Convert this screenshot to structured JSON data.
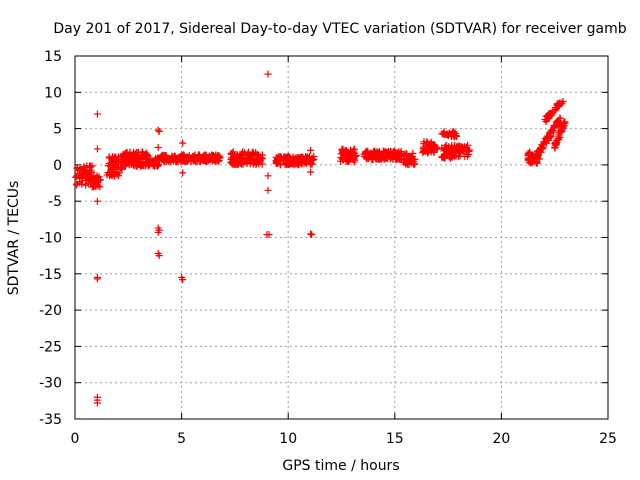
{
  "chart_data": {
    "type": "scatter",
    "title": "Day 201 of 2017, Sidereal Day-to-day VTEC variation (SDTVAR) for receiver gamb",
    "xlabel": "GPS time / hours",
    "ylabel": "SDTVAR / TECUs",
    "xlim": [
      0,
      25
    ],
    "ylim": [
      -35,
      15
    ],
    "xticks": [
      0,
      5,
      10,
      15,
      20,
      25
    ],
    "yticks": [
      -35,
      -30,
      -25,
      -20,
      -15,
      -10,
      -5,
      0,
      5,
      10,
      15
    ],
    "xtick_labels": [
      "0",
      "5",
      "10",
      "15",
      "20",
      "25"
    ],
    "ytick_labels": [
      "-35",
      "-30",
      "-25",
      "-20",
      "-15",
      "-10",
      "-5",
      "0",
      "5",
      "10",
      "15"
    ],
    "grid": true,
    "marker": "+",
    "color": "#ff0000",
    "series": [
      {
        "name": "SDTVAR",
        "clusters": [
          {
            "x_range": [
              0.0,
              0.8
            ],
            "y_center": -1.5,
            "y_spread": 1.4,
            "count": 60
          },
          {
            "x_range": [
              0.8,
              1.2
            ],
            "y_center": -2.3,
            "y_spread": 0.8,
            "count": 30
          },
          {
            "x_range": [
              1.5,
              2.2
            ],
            "y_center": -0.2,
            "y_spread": 1.4,
            "count": 70
          },
          {
            "x_range": [
              2.2,
              3.4
            ],
            "y_center": 0.8,
            "y_spread": 1.0,
            "count": 110
          },
          {
            "x_range": [
              3.4,
              4.0
            ],
            "y_center": 0.4,
            "y_spread": 0.6,
            "count": 45
          },
          {
            "x_range": [
              4.0,
              6.8
            ],
            "y_center": 0.9,
            "y_spread": 0.5,
            "count": 200
          },
          {
            "x_range": [
              7.3,
              8.8
            ],
            "y_center": 0.9,
            "y_spread": 0.9,
            "count": 120
          },
          {
            "x_range": [
              9.4,
              11.2
            ],
            "y_center": 0.6,
            "y_spread": 0.6,
            "count": 140
          },
          {
            "x_range": [
              12.4,
              13.2
            ],
            "y_center": 1.3,
            "y_spread": 0.9,
            "count": 60
          },
          {
            "x_range": [
              13.5,
              15.3
            ],
            "y_center": 1.3,
            "y_spread": 0.6,
            "count": 150
          },
          {
            "x_range": [
              15.4,
              16.0
            ],
            "y_center": 0.8,
            "y_spread": 0.8,
            "count": 40
          },
          {
            "x_range": [
              16.3,
              17.0
            ],
            "y_center": 2.4,
            "y_spread": 0.8,
            "count": 50
          },
          {
            "x_range": [
              17.2,
              18.5
            ],
            "y_center": 1.8,
            "y_spread": 0.9,
            "count": 90
          },
          {
            "x_range": [
              17.2,
              17.9
            ],
            "y_center": 4.2,
            "y_spread": 0.4,
            "count": 25
          },
          {
            "x_range": [
              21.2,
              21.8
            ],
            "y_center": 1.0,
            "y_spread": 0.8,
            "count": 45
          }
        ],
        "curves": [
          {
            "x": [
              21.6,
              22.8
            ],
            "y": [
              1.0,
              6.5
            ],
            "spread": 0.5,
            "count": 70
          },
          {
            "x": [
              22.0,
              22.9
            ],
            "y": [
              6.0,
              9.0
            ],
            "spread": 0.4,
            "count": 35
          },
          {
            "x": [
              22.5,
              23.0
            ],
            "y": [
              2.5,
              6.0
            ],
            "spread": 0.4,
            "count": 35
          }
        ],
        "points": [
          [
            1.05,
            7.0
          ],
          [
            1.05,
            2.2
          ],
          [
            1.05,
            -5.0
          ],
          [
            1.05,
            -15.5
          ],
          [
            1.05,
            -15.7
          ],
          [
            1.05,
            -32.0
          ],
          [
            1.05,
            -32.4
          ],
          [
            1.05,
            -32.8
          ],
          [
            3.9,
            4.8
          ],
          [
            3.95,
            4.6
          ],
          [
            3.9,
            2.4
          ],
          [
            3.9,
            -8.7
          ],
          [
            3.95,
            -9.0
          ],
          [
            3.9,
            -9.3
          ],
          [
            3.9,
            -12.2
          ],
          [
            3.95,
            -12.5
          ],
          [
            5.05,
            3.0
          ],
          [
            5.05,
            -1.1
          ],
          [
            5.0,
            -15.5
          ],
          [
            5.05,
            -15.8
          ],
          [
            9.05,
            12.5
          ],
          [
            9.05,
            -1.5
          ],
          [
            9.05,
            -3.5
          ],
          [
            9.0,
            -9.6
          ],
          [
            9.1,
            -9.6
          ],
          [
            11.05,
            2.0
          ],
          [
            11.05,
            -1.0
          ],
          [
            11.1,
            -9.6
          ],
          [
            11.05,
            -9.5
          ]
        ]
      }
    ]
  }
}
